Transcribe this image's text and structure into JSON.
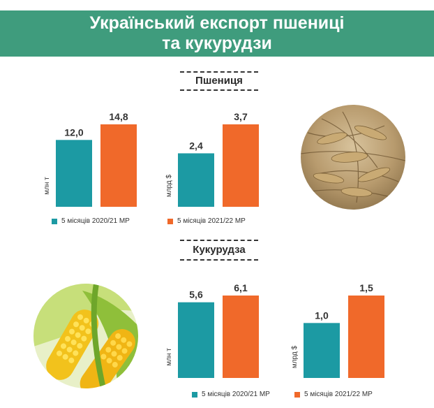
{
  "header": {
    "line1": "Український експорт пшениці",
    "line2": "та кукурудзи"
  },
  "sections": {
    "wheat": "Пшениця",
    "corn": "Кукурудза"
  },
  "legend": {
    "label_2020": "5 місяців 2020/21 МР",
    "label_2021": "5 місяців 2021/22  МР"
  },
  "colors": {
    "header": "#3f9c7d",
    "series_2020": "#1c9aa3",
    "series_2021": "#f0692a"
  },
  "images": {
    "wheat": "wheat-photo",
    "corn": "corn-photo"
  },
  "chart_data": [
    {
      "id": "wheat-volume",
      "type": "bar",
      "ylabel": "млн т",
      "categories": [
        "5 місяців 2020/21 МР",
        "5 місяців 2021/22  МР"
      ],
      "values": [
        12.0,
        14.8
      ],
      "value_labels": [
        "12,0",
        "14,8"
      ],
      "ylim": [
        0,
        14.8
      ]
    },
    {
      "id": "wheat-value",
      "type": "bar",
      "ylabel": "млрд $",
      "categories": [
        "5 місяців 2020/21 МР",
        "5 місяців 2021/22  МР"
      ],
      "values": [
        2.4,
        3.7
      ],
      "value_labels": [
        "2,4",
        "3,7"
      ],
      "ylim": [
        0,
        3.7
      ]
    },
    {
      "id": "corn-volume",
      "type": "bar",
      "ylabel": "млн т",
      "categories": [
        "5 місяців 2020/21 МР",
        "5 місяців 2021/22  МР"
      ],
      "values": [
        5.6,
        6.1
      ],
      "value_labels": [
        "5,6",
        "6,1"
      ],
      "ylim": [
        0,
        6.1
      ]
    },
    {
      "id": "corn-value",
      "type": "bar",
      "ylabel": "млрд $",
      "categories": [
        "5 місяців 2020/21 МР",
        "5 місяців 2021/22  МР"
      ],
      "values": [
        1.0,
        1.5
      ],
      "value_labels": [
        "1,0",
        "1,5"
      ],
      "ylim": [
        0,
        1.5
      ]
    }
  ]
}
